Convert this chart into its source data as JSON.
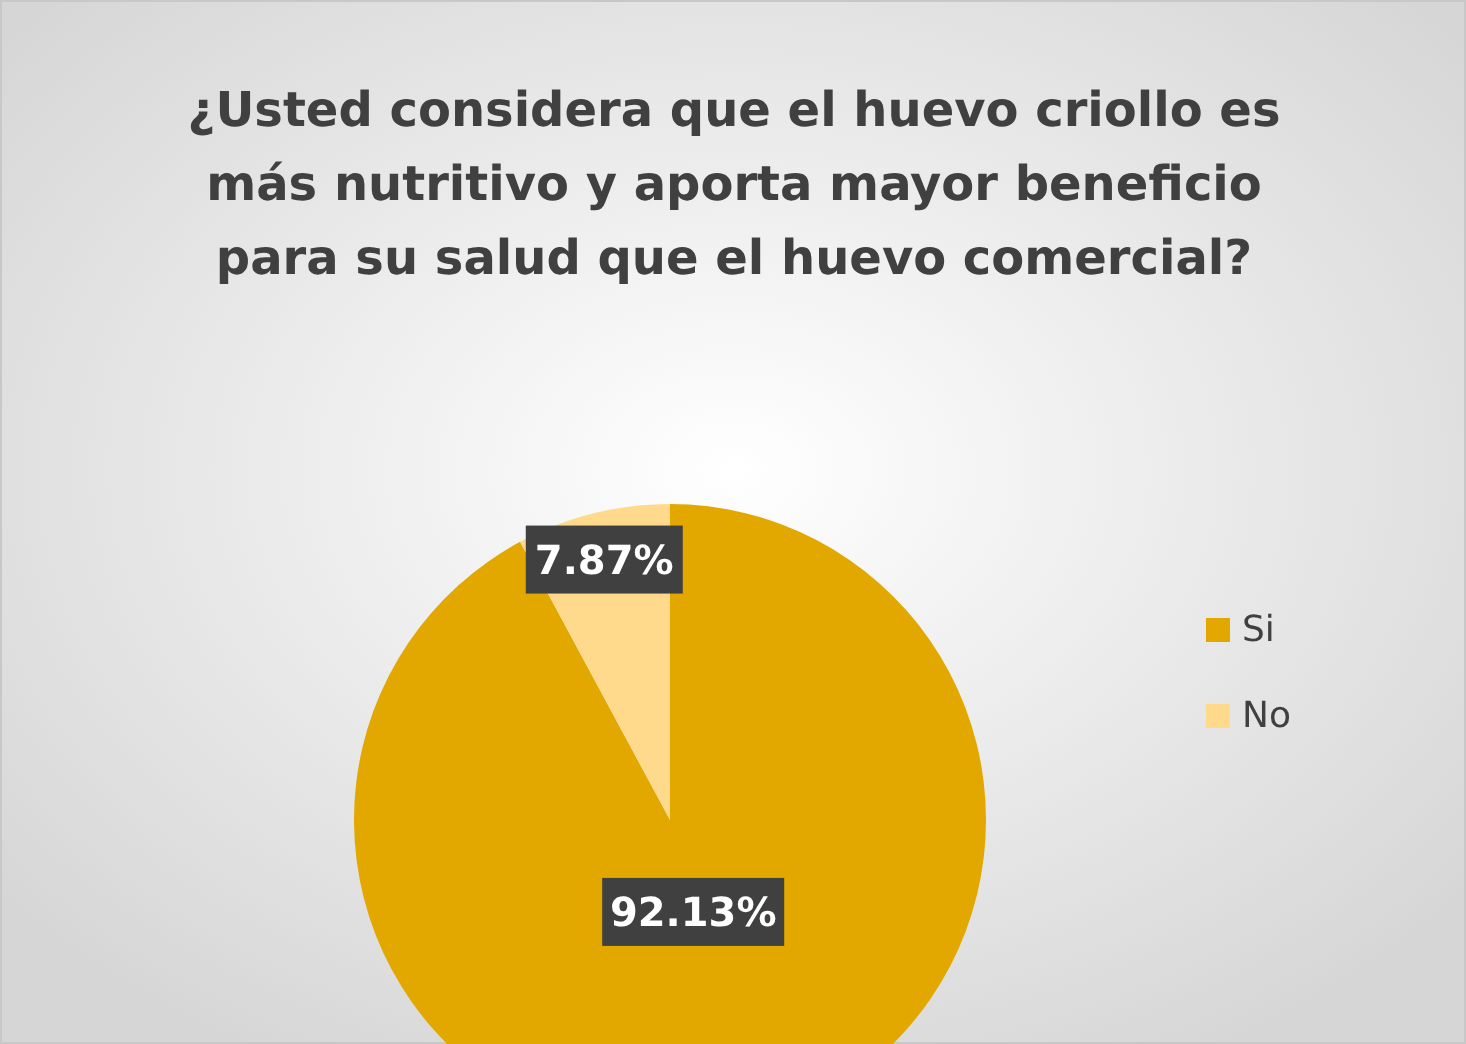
{
  "chart_data": {
    "type": "pie",
    "title": "¿Usted considera que el huevo criollo es más nutritivo y aporta mayor beneficio para su salud que el huevo comercial?",
    "categories": [
      "Si",
      "No"
    ],
    "values": [
      92.13,
      7.87
    ],
    "value_labels": [
      "92.13%",
      "7.87%"
    ],
    "colors": [
      "#e2a800",
      "#ffd98c"
    ],
    "legend": "right"
  }
}
